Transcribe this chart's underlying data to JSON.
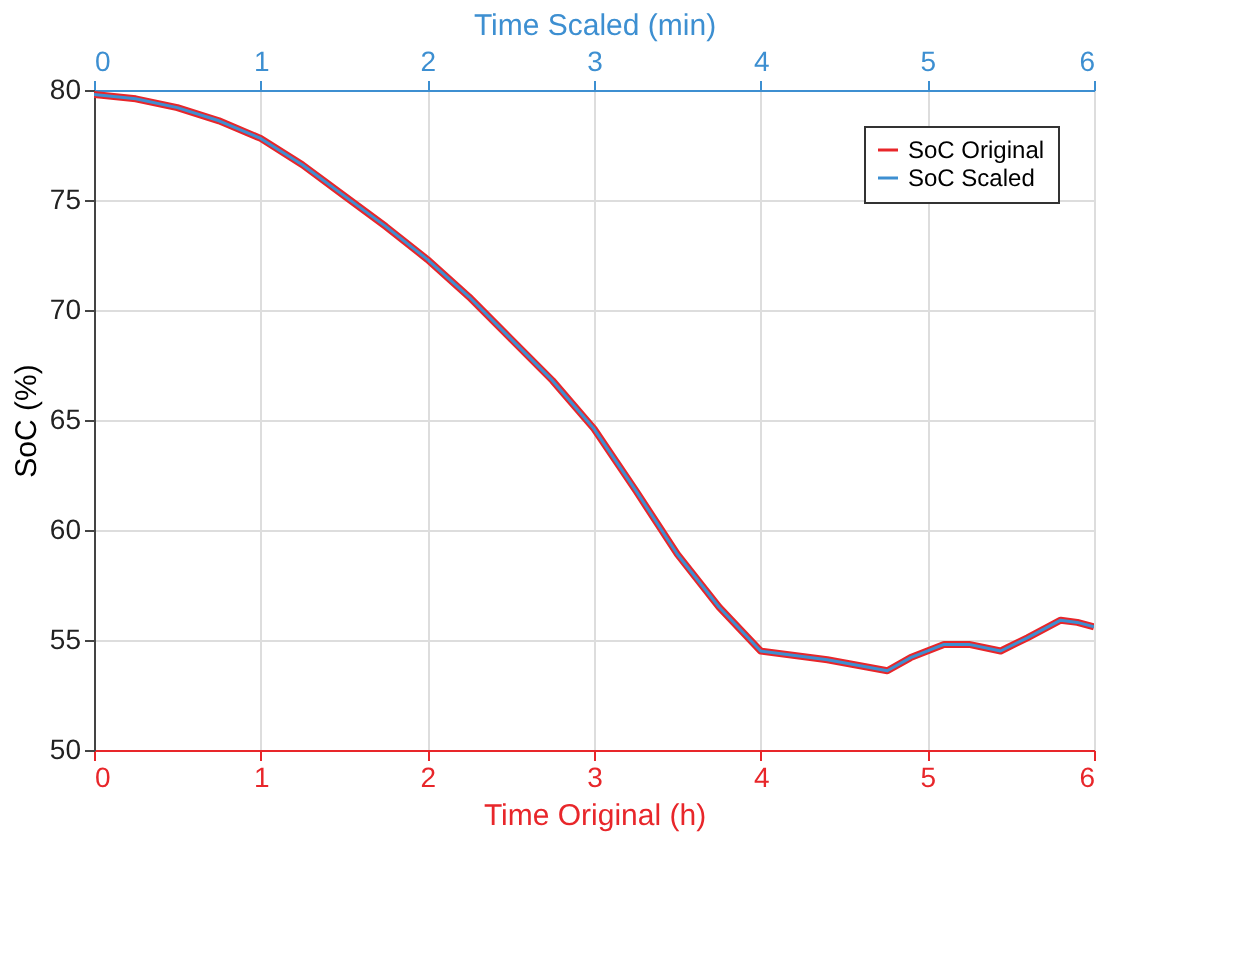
{
  "chart_data": {
    "type": "line",
    "xlabel": "Time Original (h)",
    "x2label": "Time Scaled (min)",
    "ylabel": "SoC (%)",
    "xlim": [
      0,
      6
    ],
    "xticks": [
      0,
      1,
      2,
      3,
      4,
      5,
      6
    ],
    "x2lim": [
      0,
      6
    ],
    "x2ticks": [
      0,
      1,
      2,
      3,
      4,
      5,
      6
    ],
    "ylim": [
      50,
      80
    ],
    "yticks": [
      50,
      55,
      60,
      65,
      70,
      75,
      80
    ],
    "grid": true,
    "legend": "top right",
    "marker": "none",
    "line_style": "solid",
    "x": [
      0,
      0.25,
      0.5,
      0.75,
      1,
      1.25,
      1.5,
      1.75,
      2,
      2.25,
      2.5,
      2.75,
      3,
      3.25,
      3.5,
      3.75,
      4,
      4.4,
      4.76,
      4.9,
      5.1,
      5.25,
      5.44,
      5.6,
      5.8,
      5.9,
      6
    ],
    "series": [
      {
        "name": "SoC Original",
        "color": "#e8262a",
        "values": [
          79.8,
          79.6,
          79.2,
          78.6,
          77.8,
          76.6,
          75.2,
          73.8,
          72.3,
          70.6,
          68.7,
          66.8,
          64.6,
          61.8,
          58.9,
          56.5,
          54.5,
          54.1,
          53.6,
          54.2,
          54.8,
          54.8,
          54.5,
          55.1,
          55.9,
          55.8,
          55.6
        ]
      },
      {
        "name": "SoC Scaled",
        "color": "#3d8fd1",
        "axis": "x2",
        "values": [
          79.8,
          79.6,
          79.2,
          78.6,
          77.8,
          76.6,
          75.2,
          73.8,
          72.3,
          70.6,
          68.7,
          66.8,
          64.6,
          61.8,
          58.9,
          56.5,
          54.5,
          54.1,
          53.6,
          54.2,
          54.8,
          54.8,
          54.5,
          55.1,
          55.9,
          55.8,
          55.6
        ]
      }
    ]
  }
}
